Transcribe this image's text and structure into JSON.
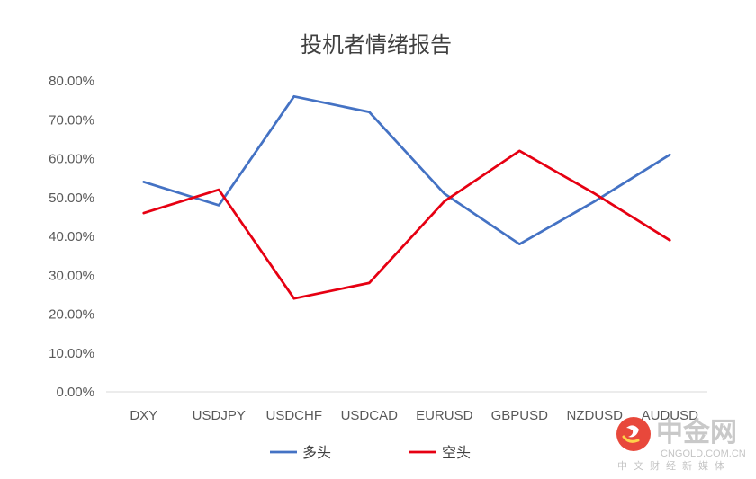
{
  "chart_data": {
    "type": "line",
    "title": "投机者情绪报告",
    "categories": [
      "DXY",
      "USDJPY",
      "USDCHF",
      "USDCAD",
      "EURUSD",
      "GBPUSD",
      "NZDUSD",
      "AUDUSD"
    ],
    "series": [
      {
        "name": "多头",
        "color": "#4472c4",
        "values": [
          0.54,
          0.48,
          0.76,
          0.72,
          0.51,
          0.38,
          0.49,
          0.61
        ]
      },
      {
        "name": "空头",
        "color": "#e60012",
        "values": [
          0.46,
          0.52,
          0.24,
          0.28,
          0.49,
          0.62,
          0.51,
          0.39
        ]
      }
    ],
    "yticks": [
      "0.00%",
      "10.00%",
      "20.00%",
      "30.00%",
      "40.00%",
      "50.00%",
      "60.00%",
      "70.00%",
      "80.00%"
    ],
    "ylim": [
      0,
      0.8
    ],
    "grid": false,
    "legend_position": "bottom"
  },
  "watermark": {
    "brand": "中金网",
    "site": "CNGOLD.COM.CN",
    "tagline": "中文财经新媒体",
    "logo_color": "#e8483b"
  }
}
